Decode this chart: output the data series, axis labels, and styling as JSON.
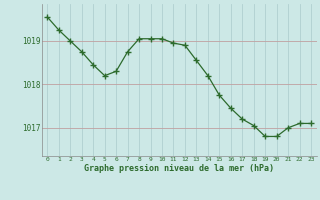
{
  "x": [
    0,
    1,
    2,
    3,
    4,
    5,
    6,
    7,
    8,
    9,
    10,
    11,
    12,
    13,
    14,
    15,
    16,
    17,
    18,
    19,
    20,
    21,
    22,
    23
  ],
  "y": [
    1019.55,
    1019.25,
    1019.0,
    1018.75,
    1018.45,
    1018.2,
    1018.3,
    1018.75,
    1019.05,
    1019.05,
    1019.05,
    1018.95,
    1018.9,
    1018.55,
    1018.2,
    1017.75,
    1017.45,
    1017.2,
    1017.05,
    1016.8,
    1016.8,
    1017.0,
    1017.1,
    1017.1
  ],
  "line_color": "#2d6b2d",
  "marker_color": "#2d6b2d",
  "bg_color": "#cce8e6",
  "grid_color_v": "#b0d0d0",
  "grid_color_h": "#c0a0a0",
  "border_color": "#888888",
  "xlabel": "Graphe pression niveau de la mer (hPa)",
  "xlabel_color": "#2d6b2d",
  "tick_color": "#2d6b2d",
  "yticks": [
    1017,
    1018,
    1019
  ],
  "ylim": [
    1016.35,
    1019.85
  ],
  "xlim": [
    -0.5,
    23.5
  ],
  "figsize": [
    3.2,
    2.0
  ],
  "dpi": 100
}
